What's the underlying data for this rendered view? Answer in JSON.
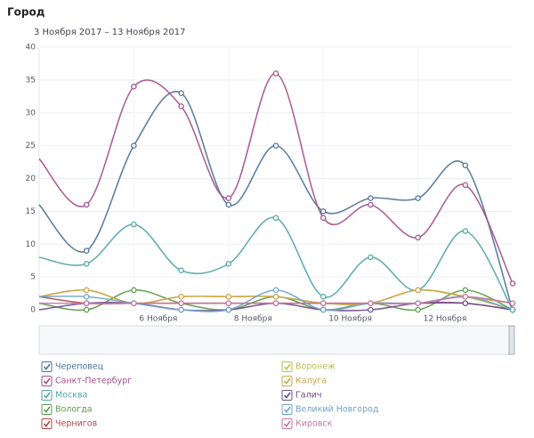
{
  "chart_data": {
    "type": "line",
    "title": "Город",
    "subtitle": "3 Ноября 2017 – 13 Ноября 2017",
    "categories": [
      null,
      null,
      "6 Ноября",
      null,
      "8 Ноября",
      null,
      "10 Ноября",
      null,
      "12 Ноября",
      null,
      null
    ],
    "ylim": [
      0,
      40
    ],
    "yticks": [
      0,
      5,
      10,
      15,
      20,
      25,
      30,
      35,
      40
    ],
    "grid": true,
    "series": [
      {
        "name": "Череповец",
        "color": "#4d7396",
        "values": [
          16,
          9,
          25,
          33,
          16,
          25,
          15,
          17,
          17,
          22,
          0
        ]
      },
      {
        "name": "Санкт-Петербург",
        "color": "#a4518b",
        "values": [
          23,
          16,
          34,
          31,
          17,
          36,
          14,
          16,
          11,
          19,
          4
        ]
      },
      {
        "name": "Москва",
        "color": "#52a5a8",
        "values": [
          8,
          7,
          13,
          6,
          7,
          14,
          2,
          8,
          3,
          12,
          0
        ]
      },
      {
        "name": "Вологда",
        "color": "#5b9b4c",
        "values": [
          1,
          0,
          3,
          1,
          0,
          2,
          0,
          1,
          0,
          3,
          0
        ]
      },
      {
        "name": "Чернигов",
        "color": "#b44646",
        "values": [
          2,
          1,
          1,
          1,
          1,
          1,
          1,
          1,
          1,
          1,
          0
        ]
      },
      {
        "name": "Воронеж",
        "color": "#b9c24a",
        "values": [
          2,
          3,
          1,
          2,
          2,
          2,
          1,
          1,
          3,
          2,
          0
        ]
      },
      {
        "name": "Калуга",
        "color": "#cfa54a",
        "values": [
          2,
          3,
          1,
          2,
          2,
          2,
          1,
          1,
          3,
          2,
          1
        ]
      },
      {
        "name": "Галич",
        "color": "#6c4d8c",
        "values": [
          0,
          1,
          1,
          0,
          0,
          1,
          0,
          0,
          1,
          1,
          0
        ]
      },
      {
        "name": "Великий Новгород",
        "color": "#6da3c9",
        "values": [
          2,
          2,
          1,
          0,
          0,
          3,
          0,
          1,
          1,
          2,
          0
        ]
      },
      {
        "name": "Кировск",
        "color": "#c676a6",
        "values": [
          1,
          1,
          1,
          1,
          1,
          1,
          1,
          1,
          1,
          2,
          1
        ]
      }
    ]
  }
}
